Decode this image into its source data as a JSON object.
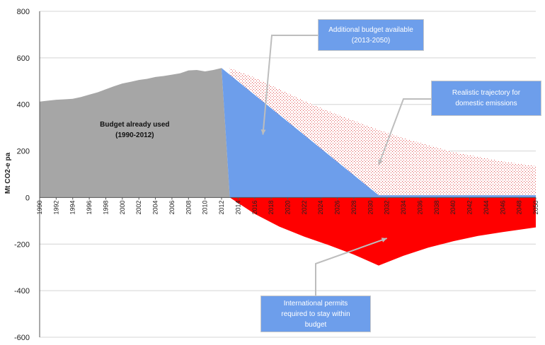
{
  "chart_data": {
    "type": "area",
    "xlabel": "",
    "ylabel": "Mt CO2-e pa",
    "ylim": [
      -600,
      800
    ],
    "yticks": [
      "800",
      "600",
      "400",
      "200",
      "0",
      "-200",
      "-400",
      "-600"
    ],
    "xlim": [
      1990,
      2050
    ],
    "xticks": [
      "1990",
      "1992",
      "1994",
      "1996",
      "1998",
      "2000",
      "2002",
      "2004",
      "2006",
      "2008",
      "2010",
      "2012",
      "2014",
      "2016",
      "2018",
      "2020",
      "2022",
      "2024",
      "2026",
      "2028",
      "2030",
      "2032",
      "2034",
      "2036",
      "2038",
      "2040",
      "2042",
      "2044",
      "2046",
      "2048",
      "2050"
    ],
    "grid": "horizontal",
    "series": [
      {
        "key": "used",
        "color": "#a6a6a6",
        "x": [
          1990,
          1991,
          1992,
          1993,
          1994,
          1995,
          1996,
          1997,
          1998,
          1999,
          2000,
          2001,
          2002,
          2003,
          2004,
          2005,
          2006,
          2007,
          2008,
          2009,
          2010,
          2011,
          2012
        ],
        "y": [
          412,
          416,
          420,
          422,
          424,
          432,
          442,
          452,
          465,
          478,
          490,
          497,
          505,
          510,
          518,
          522,
          528,
          534,
          546,
          548,
          542,
          548,
          556
        ]
      },
      {
        "key": "available",
        "color": "#6d9eeb",
        "x": [
          2012,
          2031,
          2050,
          2050,
          2013
        ],
        "y": [
          556,
          10,
          10,
          0,
          0
        ]
      },
      {
        "key": "realistic",
        "color": "#f4a6a6",
        "x": [
          2013,
          2016,
          2019,
          2022,
          2025,
          2028,
          2031,
          2034,
          2037,
          2040,
          2043,
          2046,
          2050
        ],
        "y": [
          556,
          515,
          465,
          415,
          370,
          330,
          290,
          255,
          225,
          195,
          175,
          155,
          135
        ]
      },
      {
        "key": "permits",
        "color": "#ff0000",
        "x": [
          2013,
          2016,
          2019,
          2022,
          2025,
          2028,
          2031,
          2034,
          2037,
          2040,
          2043,
          2046,
          2050
        ],
        "y": [
          0,
          -70,
          -125,
          -168,
          -205,
          -245,
          -292,
          -250,
          -215,
          -188,
          -165,
          -148,
          -128
        ]
      }
    ],
    "annotations": [
      {
        "lines": [
          "Budget already used",
          "(1990-2012)"
        ],
        "x": 2001.5,
        "y": 305
      },
      {
        "key": "available",
        "lines": [
          "Additional budget available",
          "(2013-2050)"
        ],
        "target": [
          2017,
          270
        ]
      },
      {
        "key": "realistic",
        "lines": [
          "Realistic trajectory for",
          "domestic emissions"
        ],
        "target": [
          2031,
          140
        ]
      },
      {
        "key": "permits",
        "lines": [
          "International permits",
          "required to stay within",
          "budget"
        ],
        "target": [
          2032,
          -175
        ]
      }
    ]
  }
}
